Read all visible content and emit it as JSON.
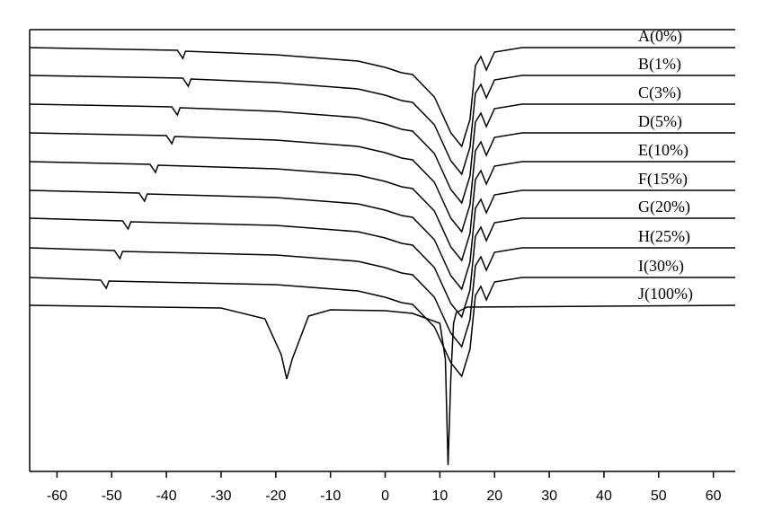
{
  "chart_data": {
    "type": "line",
    "xlim": [
      -65,
      64
    ],
    "ylim": [
      0,
      492
    ],
    "xticks": [
      -60,
      -50,
      -40,
      -30,
      -20,
      -10,
      0,
      10,
      20,
      30,
      40,
      50,
      60
    ],
    "series": [
      {
        "name": "A(0%)",
        "color": "#000000",
        "x": [
          -65,
          -38,
          -37,
          -36.5,
          -20,
          -5,
          0,
          3,
          5,
          9,
          12,
          14,
          15.5,
          16.5,
          17.5,
          18.5,
          20,
          25,
          64
        ],
        "values": [
          472,
          469,
          460,
          468,
          464,
          457,
          450,
          444,
          442,
          417,
          377,
          362,
          392,
          452,
          462,
          447,
          467,
          472,
          472
        ]
      },
      {
        "name": "B(1%)",
        "color": "#000000",
        "x": [
          -65,
          -37,
          -36,
          -35.5,
          -20,
          -5,
          0,
          3,
          5,
          9,
          12,
          14,
          15.5,
          16.5,
          17.5,
          18.5,
          20,
          25,
          64
        ],
        "values": [
          441,
          438,
          429,
          437,
          433,
          426,
          419,
          413,
          411,
          386,
          346,
          331,
          361,
          421,
          431,
          416,
          436,
          441,
          441
        ]
      },
      {
        "name": "C(3%)",
        "color": "#000000",
        "x": [
          -65,
          -39,
          -38,
          -37.5,
          -20,
          -5,
          0,
          3,
          5,
          9,
          12,
          14,
          15.5,
          16.5,
          17.5,
          18.5,
          20,
          25,
          64
        ],
        "values": [
          409,
          406,
          397,
          405,
          401,
          394,
          387,
          381,
          379,
          354,
          314,
          299,
          329,
          389,
          399,
          384,
          404,
          409,
          409
        ]
      },
      {
        "name": "D(5%)",
        "color": "#000000",
        "x": [
          -65,
          -40,
          -39,
          -38.5,
          -20,
          -5,
          0,
          3,
          5,
          9,
          12,
          14,
          15.5,
          16.5,
          17.5,
          18.5,
          20,
          25,
          64
        ],
        "values": [
          377,
          374,
          365,
          373,
          369,
          362,
          355,
          349,
          347,
          322,
          282,
          267,
          297,
          357,
          367,
          352,
          372,
          377,
          377
        ]
      },
      {
        "name": "E(10%)",
        "color": "#000000",
        "x": [
          -65,
          -43,
          -42,
          -41.5,
          -20,
          -5,
          0,
          3,
          5,
          9,
          12,
          14,
          15.5,
          16.5,
          17.5,
          18.5,
          20,
          25,
          64
        ],
        "values": [
          345,
          342,
          333,
          341,
          337,
          330,
          323,
          317,
          315,
          290,
          250,
          235,
          265,
          325,
          335,
          320,
          340,
          345,
          345
        ]
      },
      {
        "name": "F(15%)",
        "color": "#000000",
        "x": [
          -65,
          -45,
          -44,
          -43.5,
          -20,
          -5,
          0,
          3,
          5,
          9,
          12,
          14,
          15.5,
          16.5,
          17.5,
          18.5,
          20,
          25,
          64
        ],
        "values": [
          313,
          310,
          301,
          309,
          305,
          298,
          291,
          285,
          283,
          258,
          218,
          203,
          233,
          293,
          303,
          288,
          308,
          313,
          313
        ]
      },
      {
        "name": "G(20%)",
        "color": "#000000",
        "x": [
          -65,
          -48,
          -47,
          -46.5,
          -20,
          -5,
          0,
          3,
          5,
          9,
          12,
          14,
          15.5,
          16.5,
          17.5,
          18.5,
          20,
          25,
          64
        ],
        "values": [
          282,
          279,
          270,
          278,
          274,
          267,
          260,
          254,
          252,
          227,
          187,
          172,
          202,
          262,
          272,
          257,
          277,
          282,
          282
        ]
      },
      {
        "name": "H(25%)",
        "color": "#000000",
        "x": [
          -65,
          -49.5,
          -48.5,
          -48,
          -20,
          -5,
          0,
          3,
          5,
          9,
          12,
          14,
          15.5,
          16.5,
          17.5,
          18.5,
          20,
          25,
          64
        ],
        "values": [
          249,
          246,
          237,
          245,
          241,
          234,
          227,
          221,
          219,
          194,
          154,
          139,
          169,
          229,
          239,
          224,
          244,
          249,
          249
        ]
      },
      {
        "name": "I(30%)",
        "color": "#000000",
        "x": [
          -65,
          -52,
          -51,
          -50.5,
          -20,
          -5,
          0,
          3,
          5,
          9,
          12,
          14,
          15.5,
          16.5,
          17.5,
          18.5,
          20,
          25,
          64
        ],
        "values": [
          216,
          213,
          204,
          212,
          208,
          201,
          194,
          188,
          186,
          161,
          121,
          106,
          136,
          196,
          206,
          191,
          211,
          216,
          216
        ]
      },
      {
        "name": "J(100%)",
        "color": "#000000",
        "x": [
          -65,
          -30,
          -22,
          -19,
          -18,
          -17,
          -14,
          -10,
          0,
          5,
          10,
          11,
          11.5,
          12,
          12.5,
          13,
          15,
          64
        ],
        "values": [
          185,
          182,
          170,
          130,
          103,
          125,
          173,
          180,
          179,
          176,
          165,
          125,
          7,
          105,
          165,
          177,
          183,
          185
        ]
      }
    ]
  }
}
